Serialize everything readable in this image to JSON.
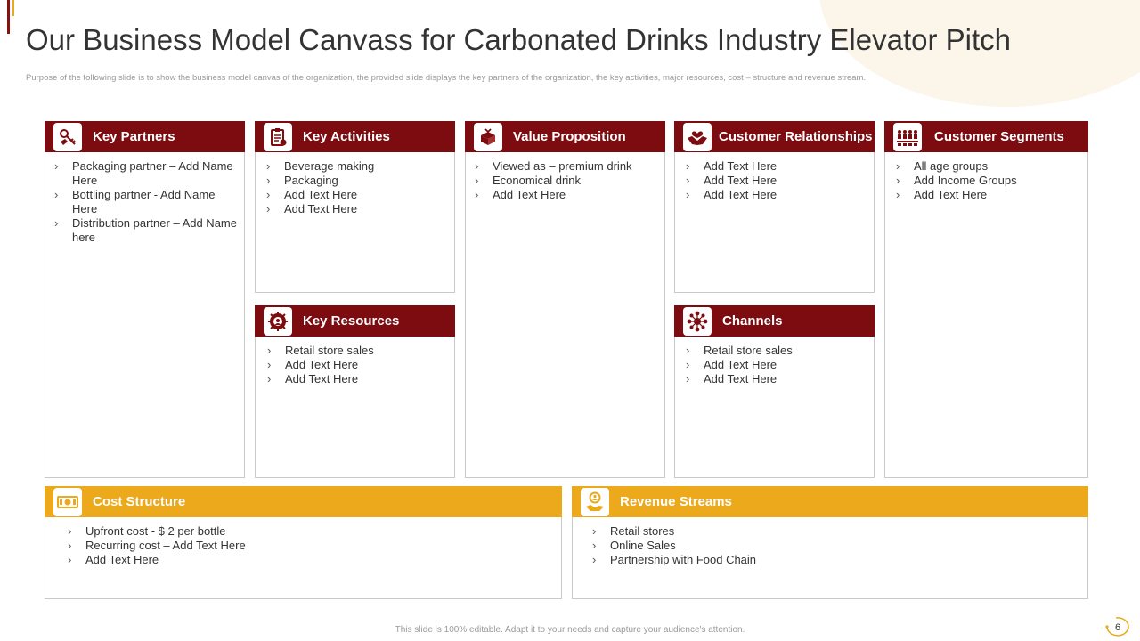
{
  "header": {
    "title": "Our Business Model Canvass for Carbonated Drinks Industry Elevator Pitch",
    "subtitle": "Purpose of the following slide is to show the business model canvas of the organization, the provided slide displays the key partners of the organization, the key activities, major resources, cost – structure and revenue stream."
  },
  "cards": {
    "key_partners": {
      "title": "Key Partners",
      "icon": "key-handshake-icon",
      "items": [
        "Packaging partner – Add Name Here",
        "Bottling partner  - Add Name Here",
        "Distribution partner – Add Name here"
      ]
    },
    "key_activities": {
      "title": "Key Activities",
      "icon": "clipboard-checklist-icon",
      "items": [
        "Beverage  making",
        "Packaging",
        "Add Text Here",
        "Add Text Here"
      ]
    },
    "value_proposition": {
      "title": "Value Proposition",
      "icon": "gift-box-icon",
      "items": [
        "Viewed as – premium drink",
        "Economical drink",
        "Add Text Here"
      ]
    },
    "customer_relationships": {
      "title": "Customer Relationships",
      "icon": "handshake-heart-icon",
      "items": [
        "Add Text Here",
        "Add Text Here",
        "Add Text Here"
      ]
    },
    "customer_segments": {
      "title": "Customer Segments",
      "icon": "people-group-icon",
      "items": [
        "All age groups",
        "Add Income Groups",
        "Add Text Here"
      ]
    },
    "key_resources": {
      "title": "Key Resources",
      "icon": "gear-people-icon",
      "items": [
        "Retail store sales",
        "Add Text Here",
        "Add Text Here"
      ]
    },
    "channels": {
      "title": "Channels",
      "icon": "network-nodes-icon",
      "items": [
        "Retail store sales",
        "Add Text Here",
        "Add Text Here"
      ]
    },
    "cost_structure": {
      "title": "Cost Structure",
      "icon": "money-bill-icon",
      "items": [
        "Upfront cost - $ 2 per bottle",
        "Recurring cost – Add Text Here",
        "Add Text Here"
      ]
    },
    "revenue_streams": {
      "title": "Revenue Streams",
      "icon": "hand-coin-person-icon",
      "items": [
        "Retail stores",
        "Online Sales",
        "Partnership with Food Chain"
      ]
    }
  },
  "footer": {
    "note": "This slide is 100% editable. Adapt it to your needs and capture your audience's attention.",
    "page_number": "6"
  },
  "colors": {
    "primary": "#7d0c10",
    "accent": "#eba91b",
    "border": "#c9c9c9"
  }
}
